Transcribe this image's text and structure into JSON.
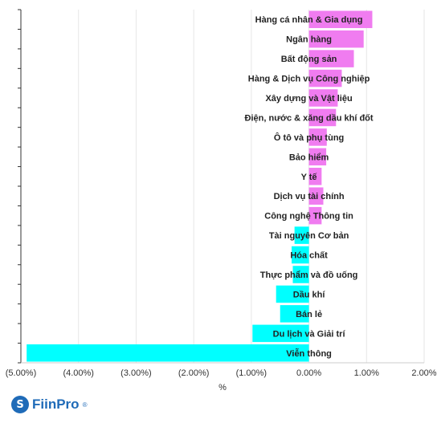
{
  "chart_data": {
    "type": "bar",
    "orientation": "horizontal",
    "categories": [
      "Hàng cá nhân & Gia dụng",
      "Ngân hàng",
      "Bất động sản",
      "Hàng & Dịch vụ Công nghiệp",
      "Xây dựng và Vật liệu",
      "Điện, nước & xăng dầu khí đốt",
      "Ô tô và phụ tùng",
      "Bảo hiểm",
      "Y tế",
      "Dịch vụ tài chính",
      "Công nghệ Thông tin",
      "Tài nguyên Cơ bản",
      "Hóa chất",
      "Thực phẩm và đồ uống",
      "Dầu khí",
      "Bán lẻ",
      "Du lịch và Giải trí",
      "Viễn thông"
    ],
    "values": [
      1.1,
      0.95,
      0.78,
      0.57,
      0.5,
      0.47,
      0.31,
      0.3,
      0.22,
      0.25,
      0.22,
      -0.25,
      -0.3,
      -0.28,
      -0.57,
      -0.5,
      -0.98,
      -4.9
    ],
    "xlim": [
      -5.0,
      2.0
    ],
    "xticks": [
      "(5.00%)",
      "(4.00%)",
      "(3.00%)",
      "(2.00%)",
      "(1.00%)",
      "0.00%",
      "1.00%",
      "2.00%"
    ],
    "xtick_values": [
      -5,
      -4,
      -3,
      -2,
      -1,
      0,
      1,
      2
    ],
    "xlabel": "%",
    "ylabel": "",
    "title": "",
    "grid": true,
    "colors": {
      "positive": "#f07cf0",
      "negative": "#00ffff",
      "grid": "#e6e6e6",
      "axis": "#333333"
    }
  },
  "brand": {
    "name": "FiinPro",
    "mark": "S",
    "reg": "®",
    "color": "#1f6bb8"
  }
}
